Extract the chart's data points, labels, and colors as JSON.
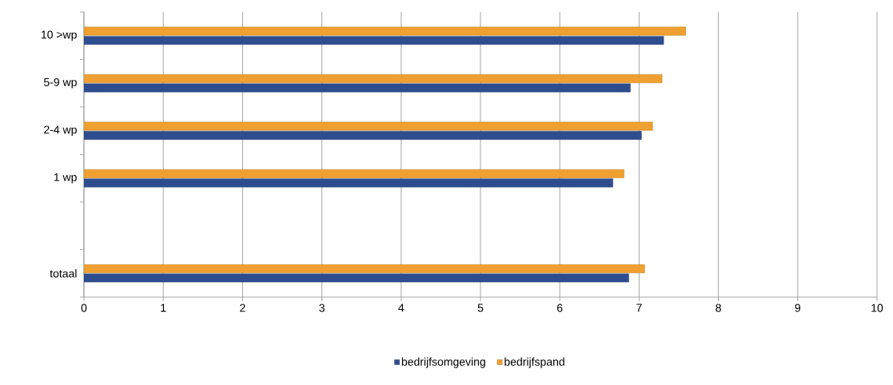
{
  "chart_data": {
    "type": "bar",
    "orientation": "horizontal",
    "categories": [
      "10 >wp",
      "5-9 wp",
      "2-4 wp",
      "1 wp",
      null,
      "totaal"
    ],
    "series": [
      {
        "name": "bedrijfsomgeving",
        "color": "#2e4d8f",
        "values": [
          7.31,
          6.89,
          7.03,
          6.67,
          null,
          6.87
        ]
      },
      {
        "name": "bedrijfspand",
        "color": "#f0a030",
        "values": [
          7.59,
          7.29,
          7.17,
          6.81,
          null,
          7.07
        ]
      }
    ],
    "xlim": [
      0,
      10
    ],
    "xticks": [
      0,
      1,
      2,
      3,
      4,
      5,
      6,
      7,
      8,
      9,
      10
    ],
    "grid": "x",
    "legend": "bottom"
  }
}
